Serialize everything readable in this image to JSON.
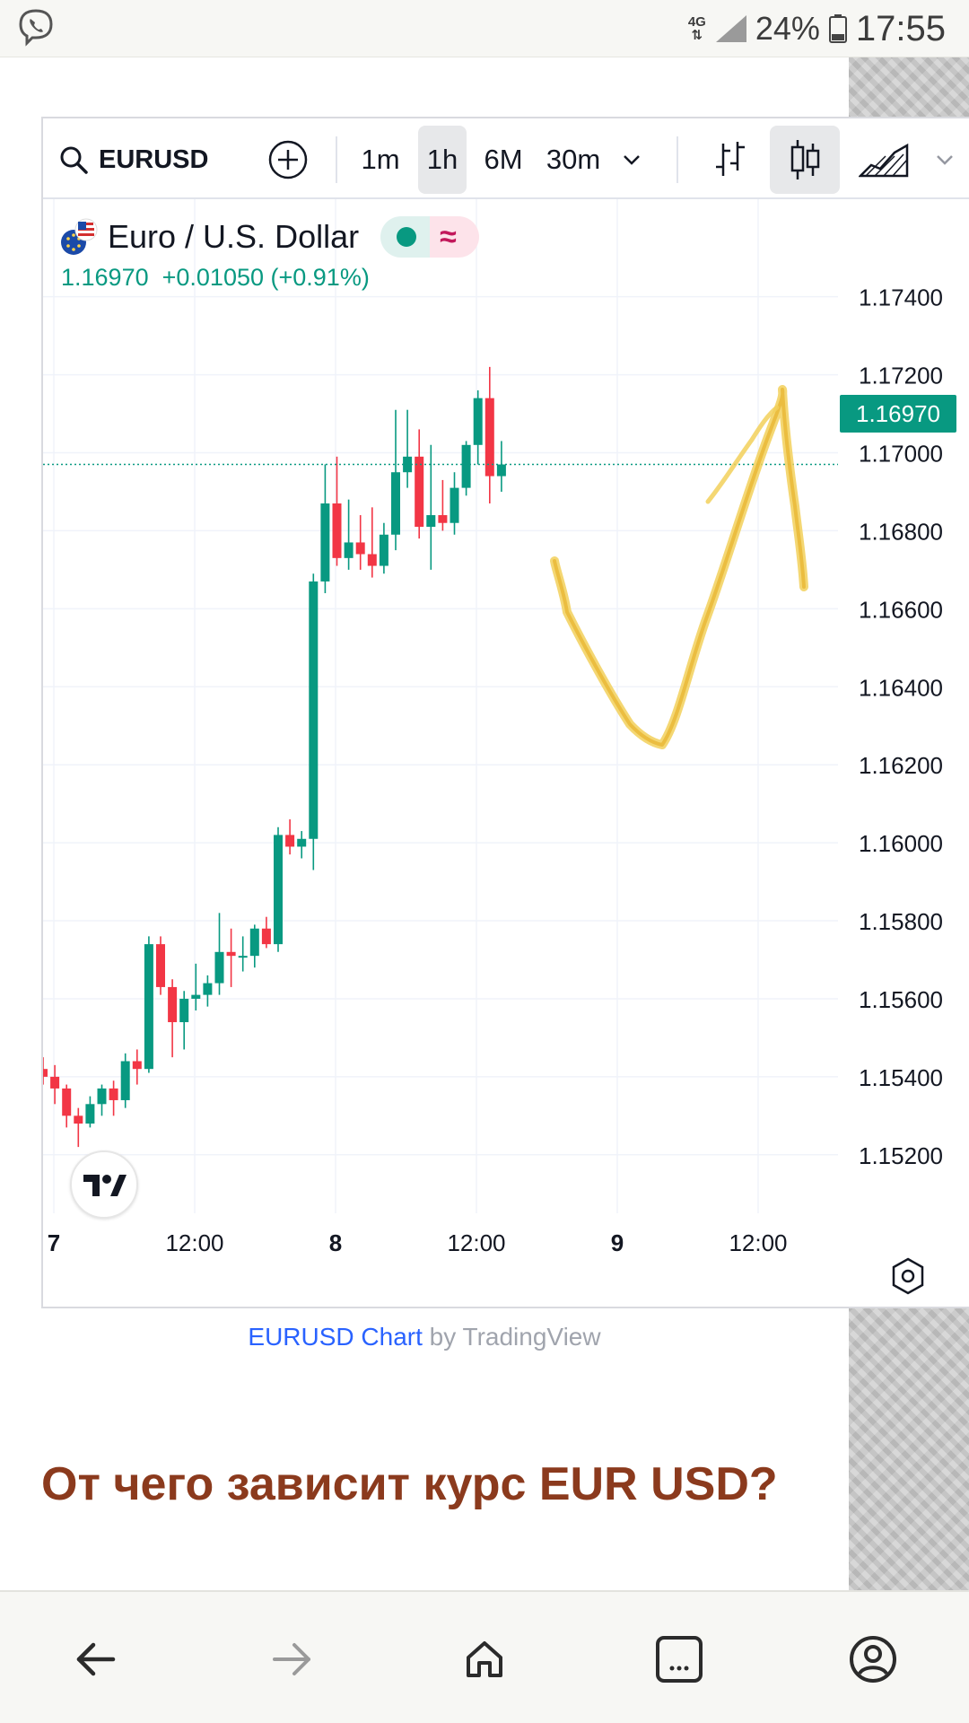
{
  "status_bar": {
    "network": "4G",
    "battery_pct": "24%",
    "time": "17:55",
    "app_icon": "viber-icon"
  },
  "toolbar": {
    "symbol": "EURUSD",
    "intervals": [
      "1m",
      "1h",
      "6M",
      "30m"
    ],
    "active_interval": "1h",
    "icons": [
      "search-icon",
      "add-icon",
      "chevron-down-icon",
      "bar-style-icon",
      "candles-icon",
      "area-chart-icon",
      "more-chevron-icon"
    ]
  },
  "legend": {
    "name": "Euro / U.S. Dollar",
    "price": "1.16970",
    "change": "+0.01050",
    "change_pct": "(+0.91%)"
  },
  "price_tag": "1.16970",
  "chart_data": {
    "type": "candlestick",
    "symbol": "EURUSD",
    "interval": "1h",
    "y_ticks": [
      "1.17400",
      "1.17200",
      "1.17000",
      "1.16800",
      "1.16600",
      "1.16400",
      "1.16200",
      "1.16000",
      "1.15800",
      "1.15600",
      "1.15400",
      "1.15200"
    ],
    "x_ticks": [
      "7",
      "12:00",
      "8",
      "12:00",
      "9",
      "12:00"
    ],
    "ylim": [
      1.1505,
      1.1765
    ],
    "last_price": 1.1697,
    "grid": true,
    "candles": [
      {
        "o": 1.1542,
        "h": 1.1545,
        "l": 1.1538,
        "c": 1.154
      },
      {
        "o": 1.154,
        "h": 1.1543,
        "l": 1.1533,
        "c": 1.1537
      },
      {
        "o": 1.1537,
        "h": 1.1538,
        "l": 1.1527,
        "c": 1.153
      },
      {
        "o": 1.153,
        "h": 1.1532,
        "l": 1.1522,
        "c": 1.1528
      },
      {
        "o": 1.1528,
        "h": 1.1535,
        "l": 1.1527,
        "c": 1.1533
      },
      {
        "o": 1.1533,
        "h": 1.1538,
        "l": 1.153,
        "c": 1.1537
      },
      {
        "o": 1.1537,
        "h": 1.1539,
        "l": 1.153,
        "c": 1.1534
      },
      {
        "o": 1.1534,
        "h": 1.1546,
        "l": 1.1532,
        "c": 1.1544
      },
      {
        "o": 1.1544,
        "h": 1.1547,
        "l": 1.1538,
        "c": 1.1542
      },
      {
        "o": 1.1542,
        "h": 1.1576,
        "l": 1.1541,
        "c": 1.1574
      },
      {
        "o": 1.1574,
        "h": 1.1576,
        "l": 1.1561,
        "c": 1.1563
      },
      {
        "o": 1.1563,
        "h": 1.1565,
        "l": 1.1545,
        "c": 1.1554
      },
      {
        "o": 1.1554,
        "h": 1.1562,
        "l": 1.1547,
        "c": 1.156
      },
      {
        "o": 1.156,
        "h": 1.1569,
        "l": 1.1557,
        "c": 1.1561
      },
      {
        "o": 1.1561,
        "h": 1.1566,
        "l": 1.1558,
        "c": 1.1564
      },
      {
        "o": 1.1564,
        "h": 1.1582,
        "l": 1.1561,
        "c": 1.1572
      },
      {
        "o": 1.1572,
        "h": 1.1578,
        "l": 1.1563,
        "c": 1.1571
      },
      {
        "o": 1.1571,
        "h": 1.1576,
        "l": 1.1567,
        "c": 1.1571
      },
      {
        "o": 1.1571,
        "h": 1.1579,
        "l": 1.1568,
        "c": 1.1578
      },
      {
        "o": 1.1578,
        "h": 1.1581,
        "l": 1.1573,
        "c": 1.1574
      },
      {
        "o": 1.1574,
        "h": 1.1604,
        "l": 1.1572,
        "c": 1.1602
      },
      {
        "o": 1.1602,
        "h": 1.1606,
        "l": 1.1597,
        "c": 1.1599
      },
      {
        "o": 1.1599,
        "h": 1.1603,
        "l": 1.1596,
        "c": 1.1601
      },
      {
        "o": 1.1601,
        "h": 1.1669,
        "l": 1.1593,
        "c": 1.1667
      },
      {
        "o": 1.1667,
        "h": 1.1697,
        "l": 1.1664,
        "c": 1.1687
      },
      {
        "o": 1.1687,
        "h": 1.1699,
        "l": 1.1671,
        "c": 1.1673
      },
      {
        "o": 1.1673,
        "h": 1.1688,
        "l": 1.167,
        "c": 1.1677
      },
      {
        "o": 1.1677,
        "h": 1.1684,
        "l": 1.167,
        "c": 1.1674
      },
      {
        "o": 1.1674,
        "h": 1.1686,
        "l": 1.1668,
        "c": 1.1671
      },
      {
        "o": 1.1671,
        "h": 1.1682,
        "l": 1.1669,
        "c": 1.1679
      },
      {
        "o": 1.1679,
        "h": 1.1711,
        "l": 1.1675,
        "c": 1.1695
      },
      {
        "o": 1.1695,
        "h": 1.1711,
        "l": 1.1691,
        "c": 1.1699
      },
      {
        "o": 1.1699,
        "h": 1.1706,
        "l": 1.1678,
        "c": 1.1681
      },
      {
        "o": 1.1681,
        "h": 1.1702,
        "l": 1.167,
        "c": 1.1684
      },
      {
        "o": 1.1684,
        "h": 1.1693,
        "l": 1.168,
        "c": 1.1682
      },
      {
        "o": 1.1682,
        "h": 1.1695,
        "l": 1.1679,
        "c": 1.1691
      },
      {
        "o": 1.1691,
        "h": 1.1703,
        "l": 1.1689,
        "c": 1.1702
      },
      {
        "o": 1.1702,
        "h": 1.1716,
        "l": 1.1697,
        "c": 1.1714
      },
      {
        "o": 1.1714,
        "h": 1.1722,
        "l": 1.1687,
        "c": 1.1694
      },
      {
        "o": 1.1694,
        "h": 1.1703,
        "l": 1.169,
        "c": 1.1697
      }
    ]
  },
  "attribution": {
    "link": "EURUSD Chart",
    "suffix": " by TradingView"
  },
  "heading": "От чего зависит курс EUR USD?",
  "nav": [
    "back-icon",
    "forward-icon",
    "home-icon",
    "tabs-icon",
    "account-icon"
  ]
}
